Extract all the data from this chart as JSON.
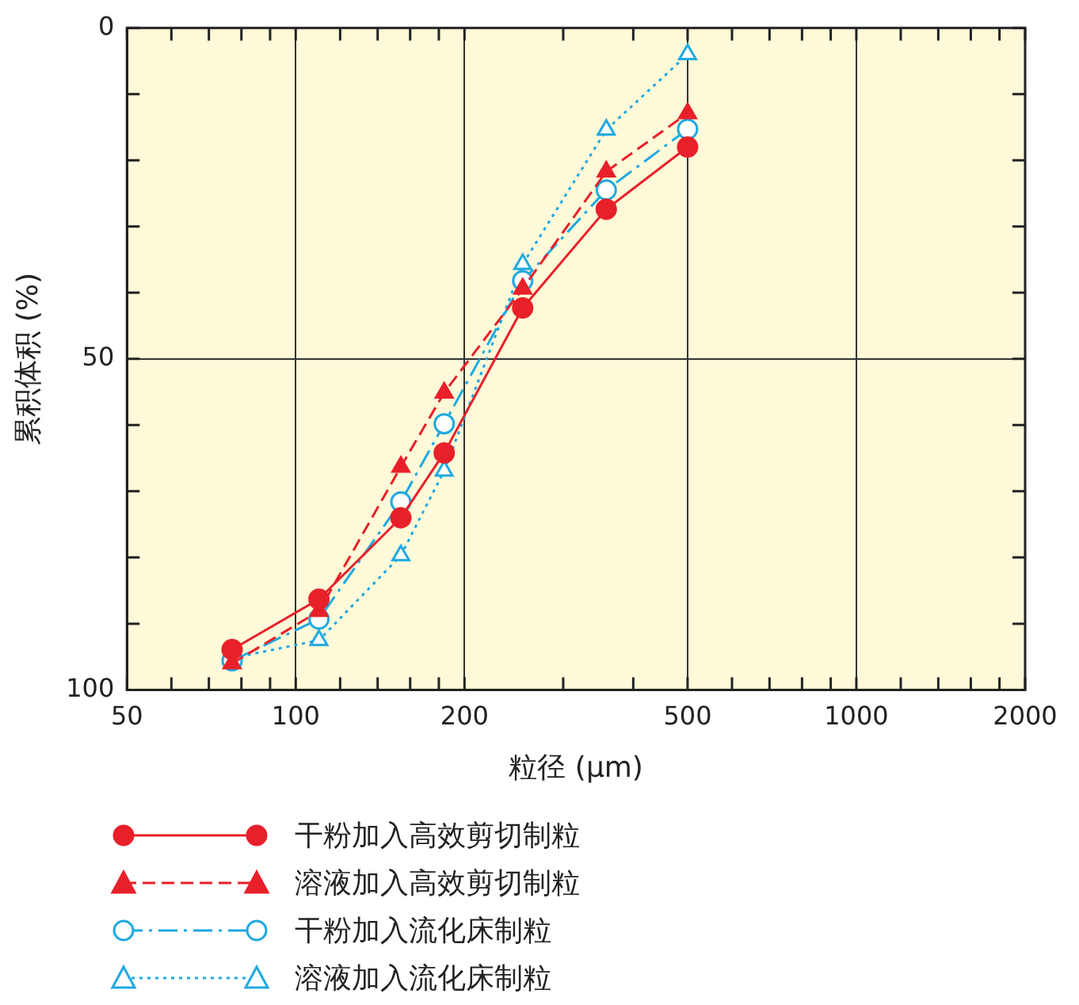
{
  "chart_data": {
    "type": "line",
    "xlabel": "粒径 (μm)",
    "ylabel": "累积体积 (%)",
    "log": "x",
    "x": [
      77,
      110,
      154,
      184,
      254,
      358,
      500
    ],
    "xlim": [
      50,
      2000
    ],
    "xticks": [
      50,
      {
        "value": 60,
        "label": null
      },
      {
        "value": 70,
        "label": null
      },
      {
        "value": 80,
        "label": null
      },
      {
        "value": 90,
        "label": null
      },
      100,
      {
        "value": 120,
        "label": null
      },
      {
        "value": 140,
        "label": null
      },
      {
        "value": 160,
        "label": null
      },
      {
        "value": 180,
        "label": null
      },
      200,
      {
        "value": 300,
        "label": null
      },
      {
        "value": 400,
        "label": null
      },
      500,
      {
        "value": 600,
        "label": null
      },
      {
        "value": 700,
        "label": null
      },
      {
        "value": 800,
        "label": null
      },
      {
        "value": 900,
        "label": null
      },
      1000,
      {
        "value": 1200,
        "label": null
      },
      {
        "value": 1400,
        "label": null
      },
      {
        "value": 1600,
        "label": null
      },
      {
        "value": 1800,
        "label": null
      },
      2000
    ],
    "ylim": [
      100,
      0
    ],
    "yticks": [
      0,
      {
        "value": 10,
        "label": null
      },
      {
        "value": 20,
        "label": null
      },
      {
        "value": 30,
        "label": null
      },
      {
        "value": 40,
        "label": null
      },
      50,
      {
        "value": 60,
        "label": null
      },
      {
        "value": 70,
        "label": null
      },
      {
        "value": 80,
        "label": null
      },
      {
        "value": 90,
        "label": null
      },
      100
    ],
    "grid": true,
    "legend": "bottom",
    "series": [
      {
        "name": "干粉加入高效剪切制粒",
        "color": "#e8202a",
        "marker": "circle",
        "line_style": "solid",
        "values": [
          93.9,
          86.3,
          74.0,
          64.2,
          42.3,
          27.4,
          18.0
        ]
      },
      {
        "name": "溶液加入高效剪切制粒",
        "color": "#e8202a",
        "marker": "triangle",
        "line_style": "dashed",
        "values": [
          96,
          88.1,
          66.3,
          55.1,
          39.4,
          21.7,
          12.9
        ]
      },
      {
        "name": "干粉加入流化床制粒",
        "color": "#1fa9e1",
        "marker": "circle-open",
        "line_style": "dashdot",
        "values": [
          95.6,
          89.3,
          71.6,
          59.8,
          38.2,
          24.5,
          15.3
        ]
      },
      {
        "name": "溶液加入流化床制粒",
        "color": "#1fa9e1",
        "marker": "triangle-open",
        "line_style": "dotted",
        "values": [
          95.2,
          92.5,
          79.7,
          66.9,
          35.7,
          15.4,
          4.0
        ]
      }
    ]
  }
}
